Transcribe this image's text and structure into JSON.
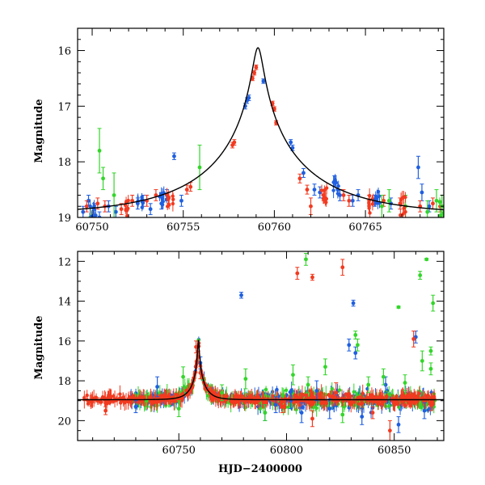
{
  "colors": {
    "blue": "#1f5fe0",
    "red": "#f23a20",
    "green": "#33d62a",
    "model": "#000000",
    "frame": "#000000"
  },
  "chart_data": [
    {
      "type": "scatter",
      "title": "",
      "xlabel": "",
      "ylabel": "Magnitude",
      "xlim": [
        60749.2,
        60769.3
      ],
      "ylim": [
        19.0,
        15.6
      ],
      "y_inverted": true,
      "xticks": [
        60750,
        60755,
        60760,
        60765
      ],
      "yticks": [
        16,
        17,
        18,
        19
      ],
      "grid": false,
      "model_curve": {
        "peak_x": 60759.1,
        "peak_mag": 15.95,
        "baseline_mag": 18.95
      },
      "series": [
        {
          "color_key": "blue",
          "points": [
            [
              60749.5,
              18.9,
              0.1
            ],
            [
              60749.8,
              18.7,
              0.1
            ],
            [
              60750.1,
              18.85,
              0.1
            ],
            [
              60750.4,
              19.0,
              0.1
            ],
            [
              60750.9,
              18.8,
              0.1
            ],
            [
              60751.3,
              18.9,
              0.1
            ],
            [
              60752.5,
              18.75,
              0.1
            ],
            [
              60752.8,
              18.7,
              0.1
            ],
            [
              60753.2,
              18.85,
              0.1
            ],
            [
              60753.8,
              18.75,
              0.1
            ],
            [
              60754.1,
              18.6,
              0.1
            ],
            [
              60754.5,
              17.9,
              0.06
            ],
            [
              60754.9,
              18.7,
              0.1
            ],
            [
              60758.4,
              17.0,
              0.05
            ],
            [
              60758.5,
              16.9,
              0.05
            ],
            [
              60758.6,
              16.85,
              0.05
            ],
            [
              60759.4,
              16.55,
              0.04
            ],
            [
              60760.9,
              17.65,
              0.05
            ],
            [
              60761.0,
              17.75,
              0.05
            ],
            [
              60761.6,
              18.2,
              0.08
            ],
            [
              60762.2,
              18.5,
              0.1
            ],
            [
              60762.5,
              18.55,
              0.1
            ],
            [
              60763.3,
              18.35,
              0.1
            ],
            [
              60763.6,
              18.6,
              0.1
            ],
            [
              60764.3,
              18.7,
              0.1
            ],
            [
              60764.6,
              18.6,
              0.1
            ],
            [
              60765.5,
              18.7,
              0.1
            ],
            [
              60766.4,
              18.75,
              0.1
            ],
            [
              60767.9,
              18.1,
              0.2
            ],
            [
              60768.1,
              18.55,
              0.15
            ],
            [
              60768.5,
              18.8,
              0.1
            ]
          ]
        },
        {
          "color_key": "red",
          "points": [
            [
              60749.7,
              18.8,
              0.1
            ],
            [
              60750.3,
              18.75,
              0.1
            ],
            [
              60750.7,
              18.8,
              0.1
            ],
            [
              60751.6,
              18.85,
              0.1
            ],
            [
              60752.2,
              18.7,
              0.1
            ],
            [
              60753.0,
              18.7,
              0.1
            ],
            [
              60753.5,
              18.6,
              0.1
            ],
            [
              60754.2,
              18.65,
              0.1
            ],
            [
              60755.2,
              18.5,
              0.08
            ],
            [
              60755.4,
              18.45,
              0.08
            ],
            [
              60757.7,
              17.7,
              0.05
            ],
            [
              60757.8,
              17.65,
              0.05
            ],
            [
              60758.8,
              16.5,
              0.04
            ],
            [
              60758.9,
              16.4,
              0.04
            ],
            [
              60759.0,
              16.3,
              0.04
            ],
            [
              60759.9,
              16.95,
              0.04
            ],
            [
              60760.0,
              17.05,
              0.04
            ],
            [
              60760.1,
              17.3,
              0.04
            ],
            [
              60761.4,
              18.3,
              0.08
            ],
            [
              60761.8,
              18.5,
              0.08
            ],
            [
              60762.0,
              18.8,
              0.15
            ],
            [
              60762.7,
              18.6,
              0.1
            ],
            [
              60763.8,
              18.6,
              0.1
            ],
            [
              60764.1,
              18.7,
              0.1
            ],
            [
              60765.2,
              18.7,
              0.1
            ],
            [
              60766.0,
              18.7,
              0.1
            ],
            [
              60766.9,
              18.75,
              0.1
            ],
            [
              60768.0,
              18.8,
              0.1
            ],
            [
              60768.7,
              18.75,
              0.1
            ],
            [
              60769.1,
              18.8,
              0.1
            ]
          ]
        },
        {
          "color_key": "green",
          "points": [
            [
              60749.9,
              19.0,
              0.2
            ],
            [
              60750.4,
              17.8,
              0.4
            ],
            [
              60750.6,
              18.3,
              0.2
            ],
            [
              60751.2,
              18.6,
              0.4
            ],
            [
              60755.9,
              18.1,
              0.4
            ],
            [
              60765.9,
              18.8,
              0.2
            ],
            [
              60766.3,
              18.7,
              0.2
            ],
            [
              60767.2,
              18.8,
              0.2
            ],
            [
              60768.4,
              18.9,
              0.2
            ],
            [
              60768.9,
              18.7,
              0.2
            ],
            [
              60769.2,
              18.8,
              0.2
            ]
          ]
        }
      ]
    },
    {
      "type": "scatter",
      "title": "",
      "xlabel": "HJD−2400000",
      "ylabel": "Magnitude",
      "xlim": [
        60703,
        60873
      ],
      "ylim": [
        21.0,
        11.5
      ],
      "y_inverted": true,
      "xticks": [
        60750,
        60800,
        60850
      ],
      "yticks": [
        12,
        14,
        16,
        18,
        20
      ],
      "grid": false,
      "model_curve": {
        "peak_x": 60759.1,
        "peak_mag": 15.95,
        "baseline_mag": 18.95
      },
      "series": [
        {
          "color_key": "blue",
          "points": [
            [
              60779,
              13.7,
              0.15
            ],
            [
              60831,
              14.1,
              0.15
            ],
            [
              60829,
              16.2,
              0.3
            ],
            [
              60832,
              16.6,
              0.3
            ],
            [
              60846,
              18.2,
              0.4
            ],
            [
              60860,
              15.8,
              0.3
            ],
            [
              60814,
              18.5,
              0.5
            ],
            [
              60807,
              19.6,
              0.5
            ],
            [
              60820,
              19.4,
              0.5
            ],
            [
              60740,
              18.3,
              0.5
            ],
            [
              60790,
              19.6,
              0.4
            ],
            [
              60795,
              19.2,
              0.4
            ],
            [
              60835,
              19.8,
              0.4
            ],
            [
              60852,
              20.2,
              0.4
            ],
            [
              60864,
              19.5,
              0.4
            ],
            [
              60730,
              19.3,
              0.3
            ],
            [
              60760,
              17.1,
              0.3
            ],
            [
              60802,
              19.0,
              0.4
            ]
          ]
        },
        {
          "color_key": "red",
          "points": [
            [
              60805,
              12.6,
              0.3
            ],
            [
              60812,
              12.8,
              0.15
            ],
            [
              60826,
              12.3,
              0.4
            ],
            [
              60859,
              15.9,
              0.4
            ],
            [
              60823,
              18.6,
              0.5
            ],
            [
              60758,
              16.3,
              0.3
            ],
            [
              60759,
              16.8,
              0.3
            ],
            [
              60716,
              19.5,
              0.2
            ],
            [
              60798,
              19.3,
              0.3
            ],
            [
              60840,
              19.6,
              0.3
            ],
            [
              60848,
              20.5,
              0.5
            ],
            [
              60867,
              19.2,
              0.3
            ],
            [
              60812,
              19.9,
              0.4
            ],
            [
              60760,
              17.6,
              0.3
            ]
          ]
        },
        {
          "color_key": "green",
          "points": [
            [
              60809,
              11.9,
              0.3
            ],
            [
              60865,
              11.9,
              0.05
            ],
            [
              60862,
              12.7,
              0.2
            ],
            [
              60868,
              14.1,
              0.4
            ],
            [
              60852,
              14.3,
              0.05
            ],
            [
              60832,
              15.7,
              0.2
            ],
            [
              60833,
              16.2,
              0.3
            ],
            [
              60867,
              16.5,
              0.2
            ],
            [
              60863,
              17.0,
              0.5
            ],
            [
              60867,
              17.4,
              0.3
            ],
            [
              60752,
              17.8,
              0.5
            ],
            [
              60781,
              17.9,
              0.5
            ],
            [
              60803,
              17.7,
              0.5
            ],
            [
              60818,
              17.3,
              0.4
            ],
            [
              60838,
              18.2,
              0.4
            ],
            [
              60845,
              17.8,
              0.4
            ],
            [
              60855,
              18.1,
              0.4
            ],
            [
              60750,
              19.4,
              0.4
            ],
            [
              60790,
              19.6,
              0.4
            ],
            [
              60826,
              19.7,
              0.4
            ],
            [
              60735,
              19.0,
              0.3
            ],
            [
              60770,
              18.6,
              0.4
            ],
            [
              60810,
              18.2,
              0.4
            ]
          ]
        }
      ]
    }
  ]
}
